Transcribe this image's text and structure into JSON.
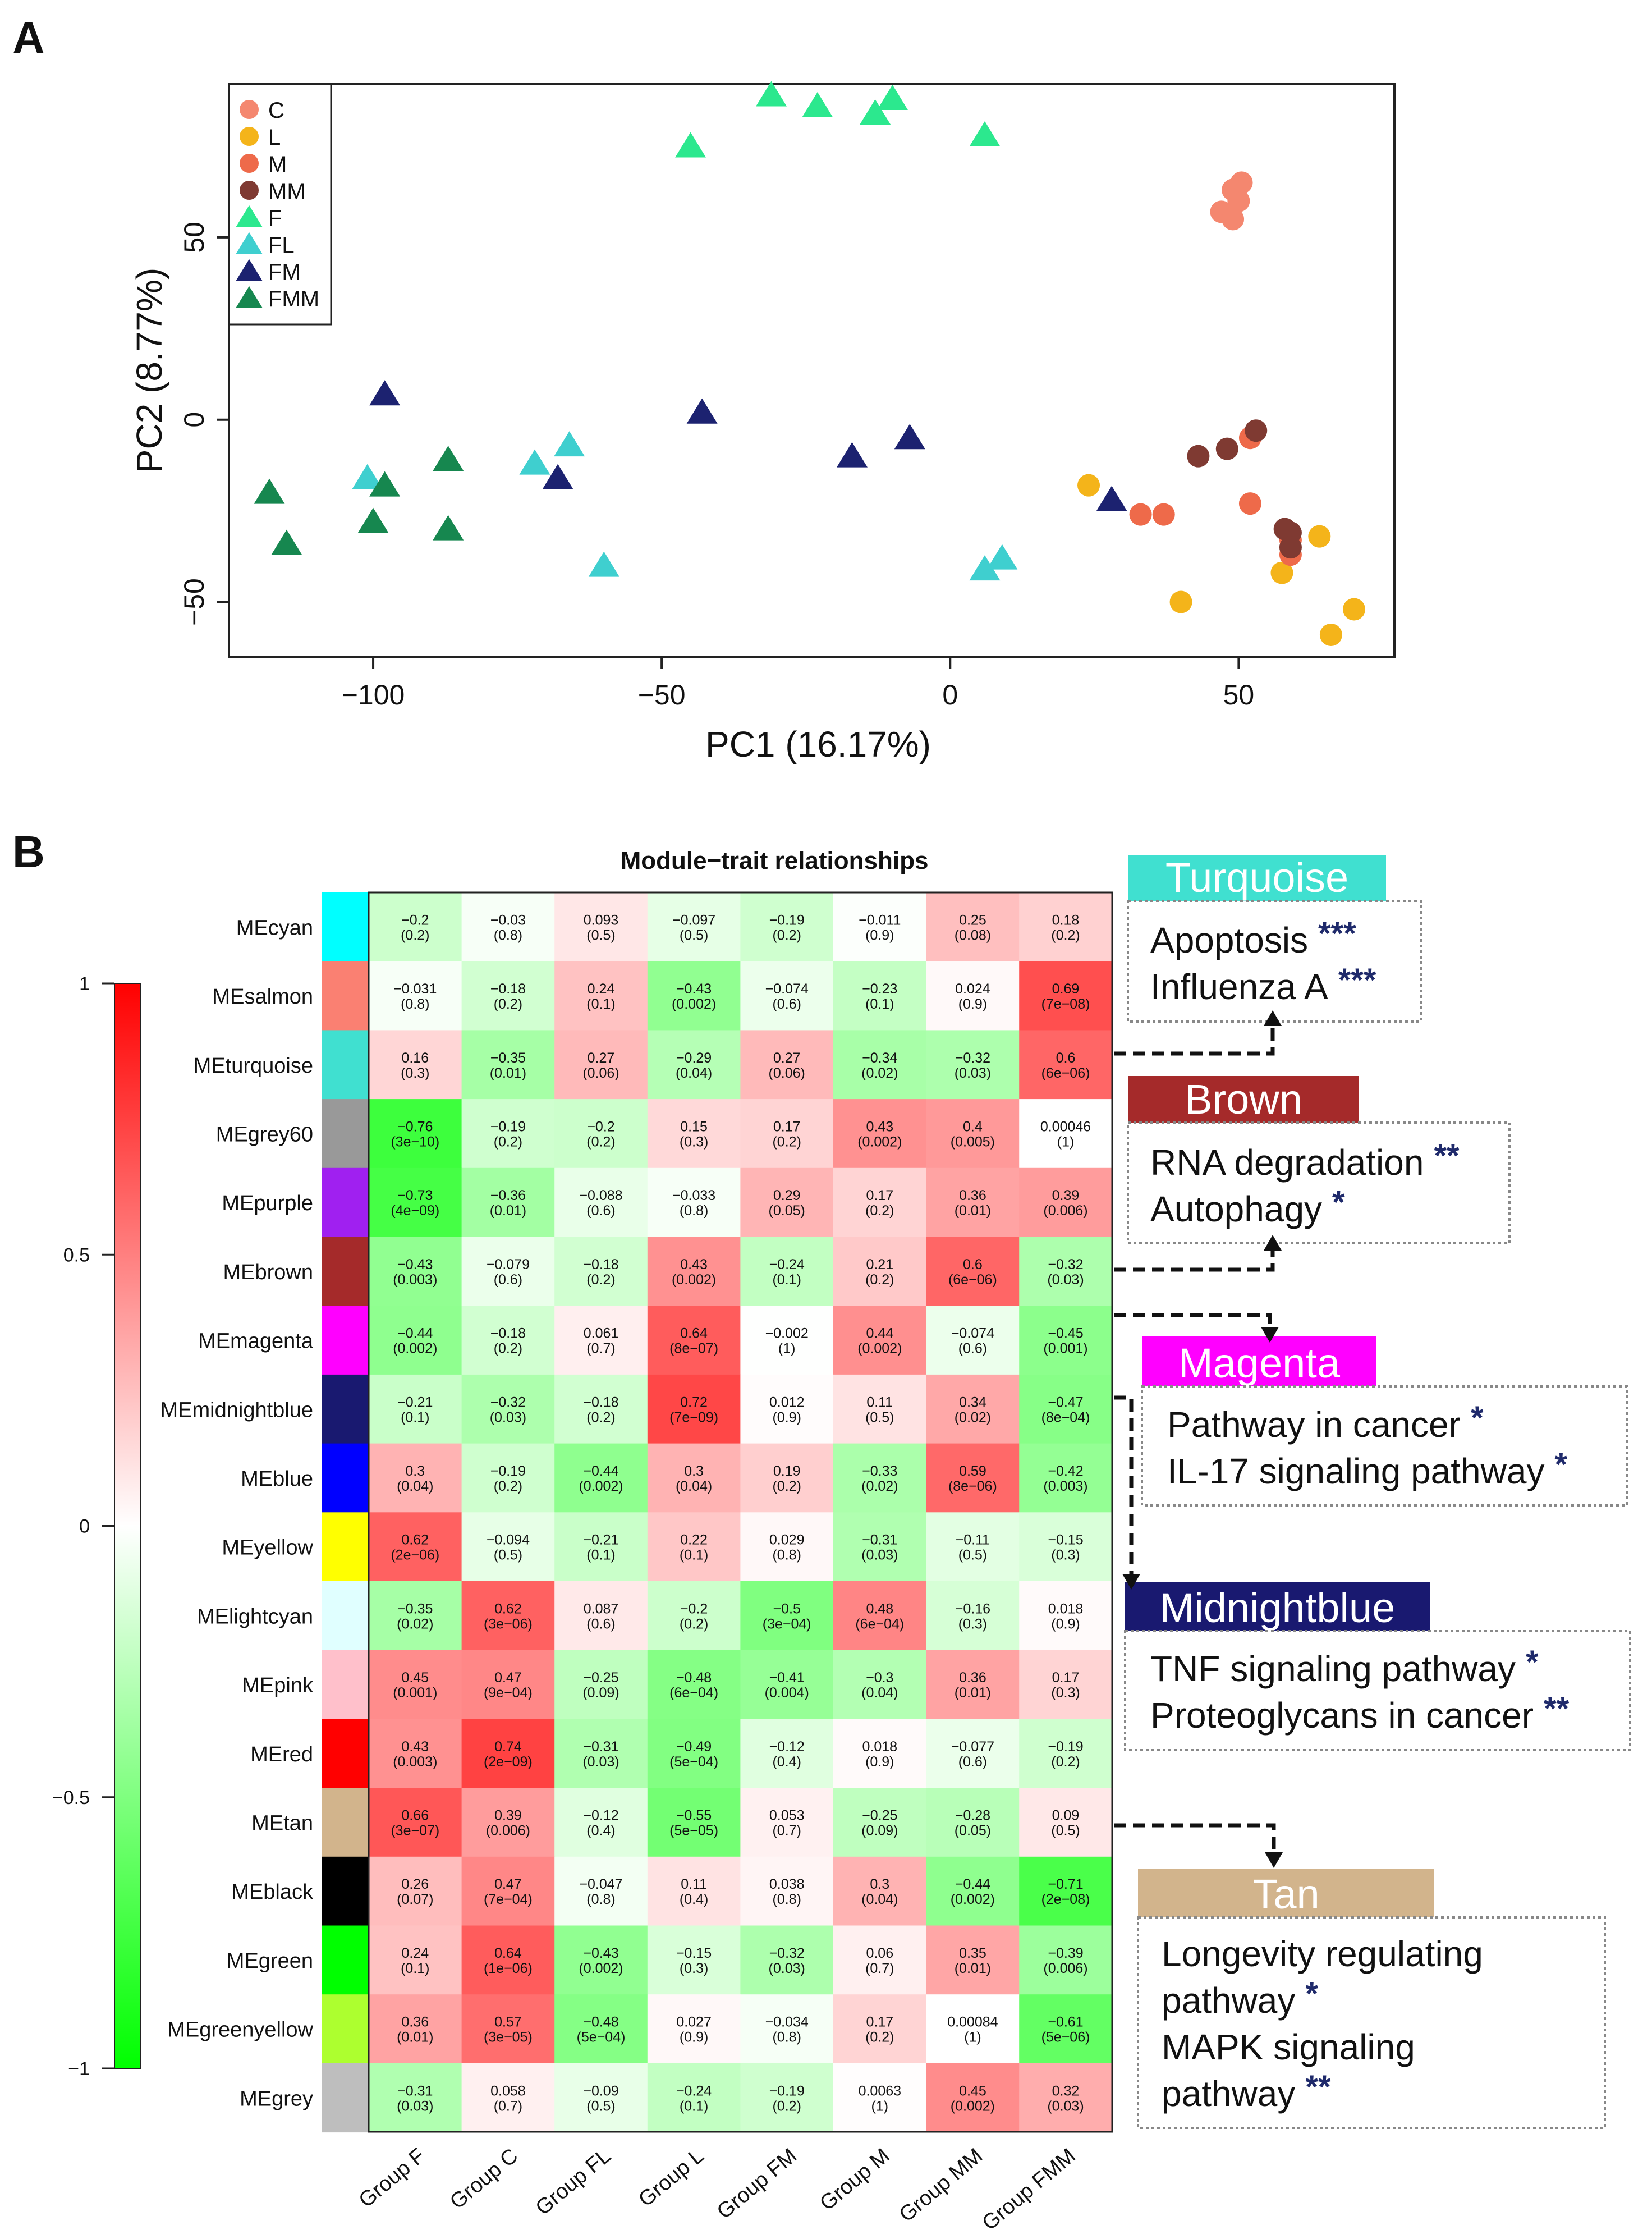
{
  "panels": {
    "a": {
      "letter": "A"
    },
    "b": {
      "letter": "B"
    }
  },
  "chart_data": [
    {
      "type": "scatter",
      "xlabel": "PC1 (16.17%)",
      "ylabel": "PC2 (8.77%)",
      "xlim": [
        -125,
        77
      ],
      "ylim": [
        -65,
        92
      ],
      "xticks": [
        "-100",
        "-50",
        "0",
        "50"
      ],
      "xtick_values": [
        -100,
        -50,
        0,
        50
      ],
      "yticks": [
        "-50",
        "0",
        "50"
      ],
      "ytick_values": [
        -50,
        0,
        50
      ],
      "legend_position": "top-left",
      "legend": [
        {
          "name": "C",
          "shape": "circle",
          "color": "#F4876F"
        },
        {
          "name": "L",
          "shape": "circle",
          "color": "#F4B41A"
        },
        {
          "name": "M",
          "shape": "circle",
          "color": "#EE6A4A"
        },
        {
          "name": "MM",
          "shape": "circle",
          "color": "#7F3A32"
        },
        {
          "name": "F",
          "shape": "triangle",
          "color": "#2CE88E"
        },
        {
          "name": "FL",
          "shape": "triangle",
          "color": "#3FCFCF"
        },
        {
          "name": "FM",
          "shape": "triangle",
          "color": "#1C2270"
        },
        {
          "name": "FMM",
          "shape": "triangle",
          "color": "#16874F"
        }
      ],
      "series": [
        {
          "name": "C",
          "points": [
            [
              50.5,
              65
            ],
            [
              49,
              63
            ],
            [
              50,
              60
            ],
            [
              47,
              57
            ],
            [
              49,
              55
            ]
          ]
        },
        {
          "name": "L",
          "points": [
            [
              24,
              -18
            ],
            [
              40,
              -50
            ],
            [
              57.5,
              -42
            ],
            [
              64,
              -32
            ],
            [
              66,
              -59
            ],
            [
              70,
              -52
            ]
          ]
        },
        {
          "name": "M",
          "points": [
            [
              33,
              -26
            ],
            [
              37,
              -26
            ],
            [
              52,
              -5
            ],
            [
              52,
              -23
            ],
            [
              59,
              -37
            ],
            [
              59,
              -33
            ]
          ]
        },
        {
          "name": "MM",
          "points": [
            [
              43,
              -10
            ],
            [
              48,
              -8
            ],
            [
              53,
              -3
            ],
            [
              58,
              -30
            ],
            [
              59,
              -31
            ],
            [
              59,
              -35
            ]
          ]
        },
        {
          "name": "F",
          "points": [
            [
              -45,
              75
            ],
            [
              -31,
              89
            ],
            [
              -23,
              86
            ],
            [
              -13,
              84
            ],
            [
              -10,
              88
            ],
            [
              6,
              78
            ]
          ]
        },
        {
          "name": "FL",
          "points": [
            [
              -101,
              -16
            ],
            [
              -72,
              -12
            ],
            [
              -66,
              -7
            ],
            [
              -60,
              -40
            ],
            [
              6,
              -41
            ],
            [
              9,
              -38
            ]
          ]
        },
        {
          "name": "FM",
          "points": [
            [
              -98,
              7
            ],
            [
              -68,
              -16
            ],
            [
              -43,
              2
            ],
            [
              -17,
              -10
            ],
            [
              -7,
              -5
            ],
            [
              28,
              -22
            ]
          ]
        },
        {
          "name": "FMM",
          "points": [
            [
              -118,
              -20
            ],
            [
              -115,
              -34
            ],
            [
              -100,
              -28
            ],
            [
              -98,
              -18
            ],
            [
              -87,
              -30
            ],
            [
              -87,
              -11
            ]
          ]
        }
      ]
    },
    {
      "type": "heatmap",
      "title": "Module−trait relationships",
      "columns": [
        "Group F",
        "Group C",
        "Group FL",
        "Group L",
        "Group FM",
        "Group M",
        "Group MM",
        "Group FMM"
      ],
      "modules": [
        {
          "name": "MEcyan",
          "color": "#00FFFF",
          "values": [
            -0.2,
            -0.03,
            0.093,
            -0.097,
            -0.19,
            -0.011,
            0.25,
            0.18
          ],
          "labels": [
            "-0.2",
            "-0.03",
            "0.093",
            "-0.097",
            "-0.19",
            "-0.011",
            "0.25",
            "0.18"
          ],
          "pvalues": [
            "(0.2)",
            "(0.8)",
            "(0.5)",
            "(0.5)",
            "(0.2)",
            "(0.9)",
            "(0.08)",
            "(0.2)"
          ]
        },
        {
          "name": "MEsalmon",
          "color": "#FA8072",
          "values": [
            -0.031,
            -0.18,
            0.24,
            -0.43,
            -0.074,
            -0.23,
            0.024,
            0.69
          ],
          "labels": [
            "-0.031",
            "-0.18",
            "0.24",
            "-0.43",
            "-0.074",
            "-0.23",
            "0.024",
            "0.69"
          ],
          "pvalues": [
            "(0.8)",
            "(0.2)",
            "(0.1)",
            "(0.002)",
            "(0.6)",
            "(0.1)",
            "(0.9)",
            "(7e-08)"
          ]
        },
        {
          "name": "MEturquoise",
          "color": "#40E0D0",
          "values": [
            0.16,
            -0.35,
            0.27,
            -0.29,
            0.27,
            -0.34,
            -0.32,
            0.6
          ],
          "labels": [
            "0.16",
            "-0.35",
            "0.27",
            "-0.29",
            "0.27",
            "-0.34",
            "-0.32",
            "0.6"
          ],
          "pvalues": [
            "(0.3)",
            "(0.01)",
            "(0.06)",
            "(0.04)",
            "(0.06)",
            "(0.02)",
            "(0.03)",
            "(6e-06)"
          ]
        },
        {
          "name": "MEgrey60",
          "color": "#999999",
          "values": [
            -0.76,
            -0.19,
            -0.2,
            0.15,
            0.17,
            0.43,
            0.4,
            0.00046
          ],
          "labels": [
            "-0.76",
            "-0.19",
            "-0.2",
            "0.15",
            "0.17",
            "0.43",
            "0.4",
            "0.00046"
          ],
          "pvalues": [
            "(3e-10)",
            "(0.2)",
            "(0.2)",
            "(0.3)",
            "(0.2)",
            "(0.002)",
            "(0.005)",
            "(1)"
          ]
        },
        {
          "name": "MEpurple",
          "color": "#A020F0",
          "values": [
            -0.73,
            -0.36,
            -0.088,
            -0.033,
            0.29,
            0.17,
            0.36,
            0.39
          ],
          "labels": [
            "-0.73",
            "-0.36",
            "-0.088",
            "-0.033",
            "0.29",
            "0.17",
            "0.36",
            "0.39"
          ],
          "pvalues": [
            "(4e-09)",
            "(0.01)",
            "(0.6)",
            "(0.8)",
            "(0.05)",
            "(0.2)",
            "(0.01)",
            "(0.006)"
          ]
        },
        {
          "name": "MEbrown",
          "color": "#A52A2A",
          "values": [
            -0.43,
            -0.079,
            -0.18,
            0.43,
            -0.24,
            0.21,
            0.6,
            -0.32
          ],
          "labels": [
            "-0.43",
            "-0.079",
            "-0.18",
            "0.43",
            "-0.24",
            "0.21",
            "0.6",
            "-0.32"
          ],
          "pvalues": [
            "(0.003)",
            "(0.6)",
            "(0.2)",
            "(0.002)",
            "(0.1)",
            "(0.2)",
            "(6e-06)",
            "(0.03)"
          ]
        },
        {
          "name": "MEmagenta",
          "color": "#FF00FF",
          "values": [
            -0.44,
            -0.18,
            0.061,
            0.64,
            -0.002,
            0.44,
            -0.074,
            -0.45
          ],
          "labels": [
            "-0.44",
            "-0.18",
            "0.061",
            "0.64",
            "-0.002",
            "0.44",
            "-0.074",
            "-0.45"
          ],
          "pvalues": [
            "(0.002)",
            "(0.2)",
            "(0.7)",
            "(8e-07)",
            "(1)",
            "(0.002)",
            "(0.6)",
            "(0.001)"
          ]
        },
        {
          "name": "MEmidnightblue",
          "color": "#191970",
          "values": [
            -0.21,
            -0.32,
            -0.18,
            0.72,
            0.012,
            0.11,
            0.34,
            -0.47
          ],
          "labels": [
            "-0.21",
            "-0.32",
            "-0.18",
            "0.72",
            "0.012",
            "0.11",
            "0.34",
            "-0.47"
          ],
          "pvalues": [
            "(0.1)",
            "(0.03)",
            "(0.2)",
            "(7e-09)",
            "(0.9)",
            "(0.5)",
            "(0.02)",
            "(8e-04)"
          ]
        },
        {
          "name": "MEblue",
          "color": "#0000FF",
          "values": [
            0.3,
            -0.19,
            -0.44,
            0.3,
            0.19,
            -0.33,
            0.59,
            -0.42
          ],
          "labels": [
            "0.3",
            "-0.19",
            "-0.44",
            "0.3",
            "0.19",
            "-0.33",
            "0.59",
            "-0.42"
          ],
          "pvalues": [
            "(0.04)",
            "(0.2)",
            "(0.002)",
            "(0.04)",
            "(0.2)",
            "(0.02)",
            "(8e-06)",
            "(0.003)"
          ]
        },
        {
          "name": "MEyellow",
          "color": "#FFFF00",
          "values": [
            0.62,
            -0.094,
            -0.21,
            0.22,
            0.029,
            -0.31,
            -0.11,
            -0.15
          ],
          "labels": [
            "0.62",
            "-0.094",
            "-0.21",
            "0.22",
            "0.029",
            "-0.31",
            "-0.11",
            "-0.15"
          ],
          "pvalues": [
            "(2e-06)",
            "(0.5)",
            "(0.1)",
            "(0.1)",
            "(0.8)",
            "(0.03)",
            "(0.5)",
            "(0.3)"
          ]
        },
        {
          "name": "MElightcyan",
          "color": "#E0FFFF",
          "values": [
            -0.35,
            0.62,
            0.087,
            -0.2,
            -0.5,
            0.48,
            -0.16,
            0.018
          ],
          "labels": [
            "-0.35",
            "0.62",
            "0.087",
            "-0.2",
            "-0.5",
            "0.48",
            "-0.16",
            "0.018"
          ],
          "pvalues": [
            "(0.02)",
            "(3e-06)",
            "(0.6)",
            "(0.2)",
            "(3e-04)",
            "(6e-04)",
            "(0.3)",
            "(0.9)"
          ]
        },
        {
          "name": "MEpink",
          "color": "#FFC0CB",
          "values": [
            0.45,
            0.47,
            -0.25,
            -0.48,
            -0.41,
            -0.3,
            0.36,
            0.17
          ],
          "labels": [
            "0.45",
            "0.47",
            "-0.25",
            "-0.48",
            "-0.41",
            "-0.3",
            "0.36",
            "0.17"
          ],
          "pvalues": [
            "(0.001)",
            "(9e-04)",
            "(0.09)",
            "(6e-04)",
            "(0.004)",
            "(0.04)",
            "(0.01)",
            "(0.3)"
          ]
        },
        {
          "name": "MEred",
          "color": "#FF0000",
          "values": [
            0.43,
            0.74,
            -0.31,
            -0.49,
            -0.12,
            0.018,
            -0.077,
            -0.19
          ],
          "labels": [
            "0.43",
            "0.74",
            "-0.31",
            "-0.49",
            "-0.12",
            "0.018",
            "-0.077",
            "-0.19"
          ],
          "pvalues": [
            "(0.003)",
            "(2e-09)",
            "(0.03)",
            "(5e-04)",
            "(0.4)",
            "(0.9)",
            "(0.6)",
            "(0.2)"
          ]
        },
        {
          "name": "MEtan",
          "color": "#D2B48C",
          "values": [
            0.66,
            0.39,
            -0.12,
            -0.55,
            0.053,
            -0.25,
            -0.28,
            0.09
          ],
          "labels": [
            "0.66",
            "0.39",
            "-0.12",
            "-0.55",
            "0.053",
            "-0.25",
            "-0.28",
            "0.09"
          ],
          "pvalues": [
            "(3e-07)",
            "(0.006)",
            "(0.4)",
            "(5e-05)",
            "(0.7)",
            "(0.09)",
            "(0.05)",
            "(0.5)"
          ]
        },
        {
          "name": "MEblack",
          "color": "#000000",
          "values": [
            0.26,
            0.47,
            -0.047,
            0.11,
            0.038,
            0.3,
            -0.44,
            -0.71
          ],
          "labels": [
            "0.26",
            "0.47",
            "-0.047",
            "0.11",
            "0.038",
            "0.3",
            "-0.44",
            "-0.71"
          ],
          "pvalues": [
            "(0.07)",
            "(7e-04)",
            "(0.8)",
            "(0.4)",
            "(0.8)",
            "(0.04)",
            "(0.002)",
            "(2e-08)"
          ]
        },
        {
          "name": "MEgreen",
          "color": "#00FF00",
          "values": [
            0.24,
            0.64,
            -0.43,
            -0.15,
            -0.32,
            0.06,
            0.35,
            -0.39
          ],
          "labels": [
            "0.24",
            "0.64",
            "-0.43",
            "-0.15",
            "-0.32",
            "0.06",
            "0.35",
            "-0.39"
          ],
          "pvalues": [
            "(0.1)",
            "(1e-06)",
            "(0.002)",
            "(0.3)",
            "(0.03)",
            "(0.7)",
            "(0.01)",
            "(0.006)"
          ]
        },
        {
          "name": "MEgreenyellow",
          "color": "#ADFF2F",
          "values": [
            0.36,
            0.57,
            -0.48,
            0.027,
            -0.034,
            0.17,
            0.00084,
            -0.61
          ],
          "labels": [
            "0.36",
            "0.57",
            "-0.48",
            "0.027",
            "-0.034",
            "0.17",
            "0.00084",
            "-0.61"
          ],
          "pvalues": [
            "(0.01)",
            "(3e-05)",
            "(5e-04)",
            "(0.9)",
            "(0.8)",
            "(0.2)",
            "(1)",
            "(5e-06)"
          ]
        },
        {
          "name": "MEgrey",
          "color": "#BEBEBE",
          "values": [
            -0.31,
            0.058,
            -0.09,
            -0.24,
            -0.19,
            0.0063,
            0.45,
            0.32
          ],
          "labels": [
            "-0.31",
            "0.058",
            "-0.09",
            "-0.24",
            "-0.19",
            "0.0063",
            "0.45",
            "0.32"
          ],
          "pvalues": [
            "(0.03)",
            "(0.7)",
            "(0.5)",
            "(0.1)",
            "(0.2)",
            "(1)",
            "(0.002)",
            "(0.03)"
          ]
        }
      ],
      "colorbar": {
        "range": [
          -1,
          1
        ],
        "ticks": [
          "1",
          "0.5",
          "0",
          "-0.5",
          "-1"
        ],
        "tick_values": [
          1,
          0.5,
          0,
          -0.5,
          -1
        ]
      }
    }
  ],
  "annotations": [
    {
      "title": "Turquoise",
      "title_bg": "#40E0D0",
      "title_color": "#FFFFFF",
      "lines": [
        {
          "text": "Apoptosis",
          "stars": "***"
        },
        {
          "text": "Influenza A",
          "stars": "***"
        }
      ]
    },
    {
      "title": "Brown",
      "title_bg": "#A52A2A",
      "title_color": "#FFFFFF",
      "lines": [
        {
          "text": "RNA degradation",
          "stars": "**"
        },
        {
          "text": "Autophagy",
          "stars": "*"
        }
      ]
    },
    {
      "title": "Magenta",
      "title_bg": "#FF00FF",
      "title_color": "#FFFFFF",
      "lines": [
        {
          "text": "Pathway in cancer",
          "stars": "*"
        },
        {
          "text": "IL-17 signaling pathway",
          "stars": "*"
        }
      ]
    },
    {
      "title": "Midnightblue",
      "title_bg": "#191970",
      "title_color": "#FFFFFF",
      "lines": [
        {
          "text": "TNF signaling pathway",
          "stars": "*"
        },
        {
          "text": "Proteoglycans in cancer",
          "stars": "**"
        }
      ]
    },
    {
      "title": "Tan",
      "title_bg": "#D2B48C",
      "title_color": "#FFFFFF",
      "lines": [
        {
          "text": "Longevity regulating",
          "stars": ""
        },
        {
          "text": "pathway",
          "stars": "*"
        },
        {
          "text": "MAPK signaling",
          "stars": ""
        },
        {
          "text": "pathway",
          "stars": "**"
        }
      ]
    }
  ],
  "colors": {
    "star_color": "#1F2A6B",
    "text": "#111111"
  }
}
